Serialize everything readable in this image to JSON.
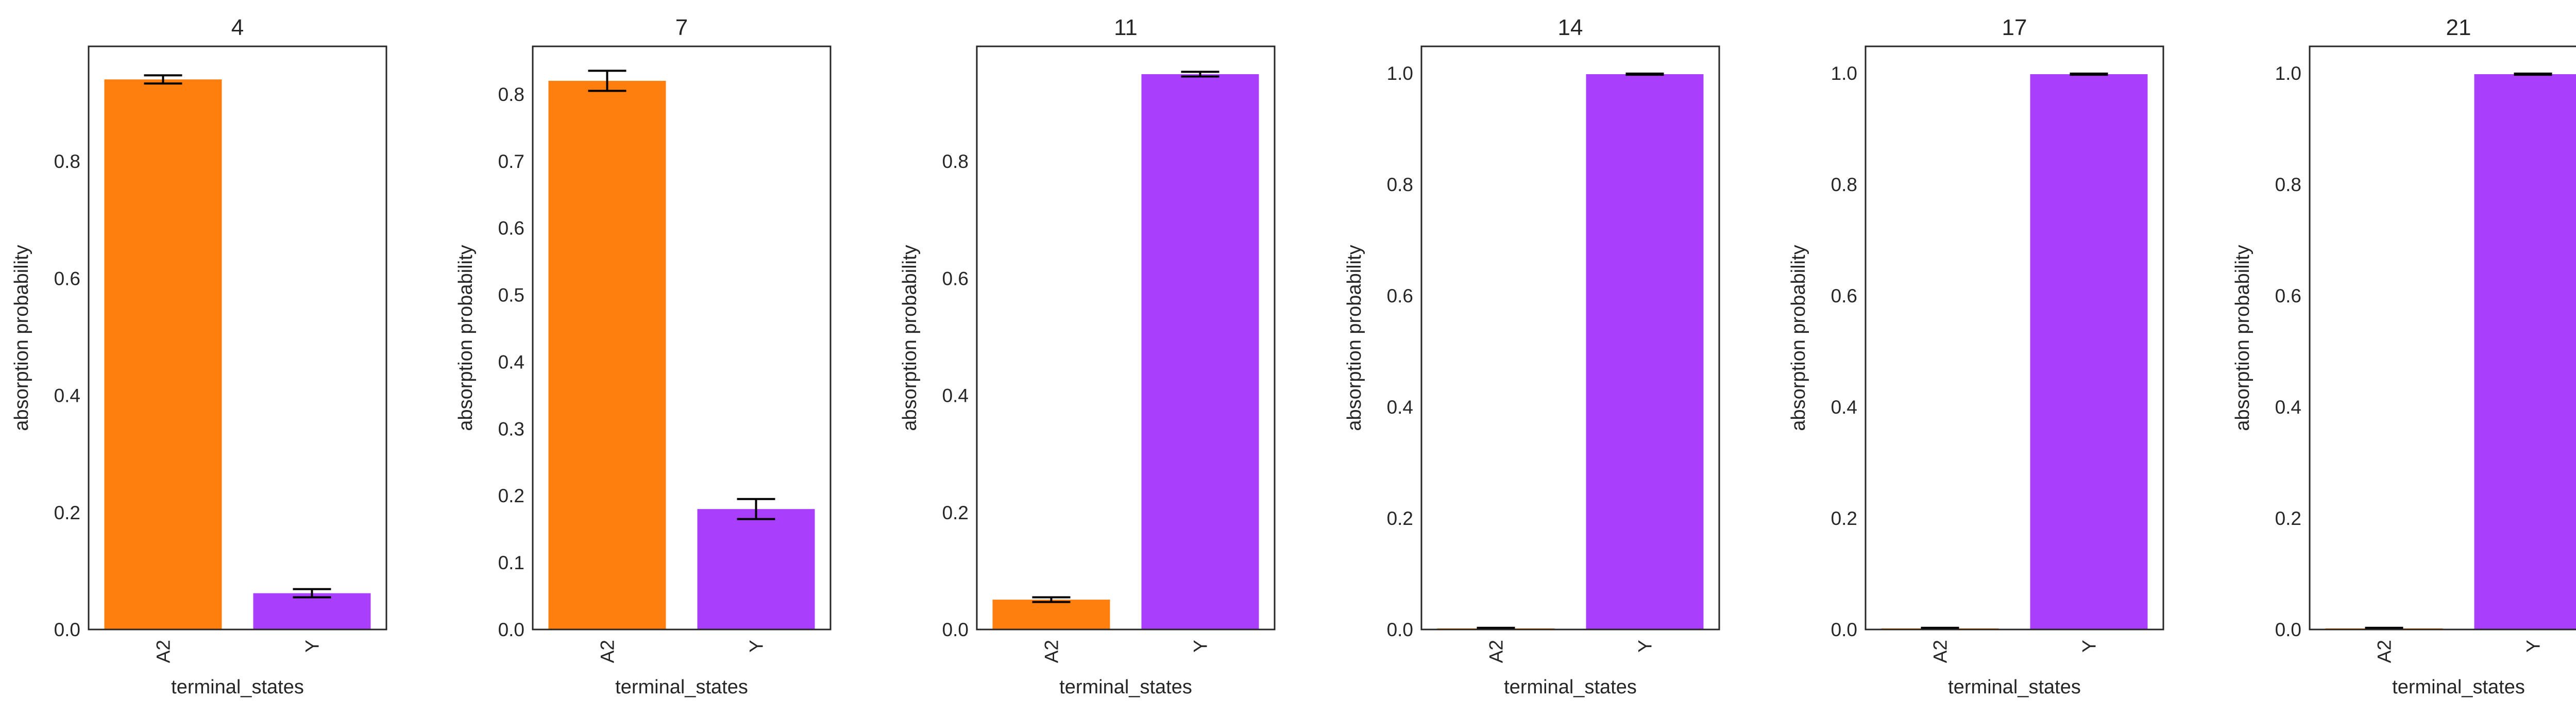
{
  "colors": {
    "A2": "#ff7f0e",
    "Y": "#a93efb",
    "axis": "#262626",
    "errorbar": "#000000"
  },
  "chart_data": [
    {
      "type": "bar",
      "title": "4",
      "xlabel": "terminal_states",
      "ylabel": "absorption probability",
      "categories": [
        "A2",
        "Y"
      ],
      "values": [
        0.94,
        0.062
      ],
      "errors": [
        0.007,
        0.007
      ],
      "ylim": [
        0,
        0.9965
      ],
      "yticks": [
        0.0,
        0.2,
        0.4,
        0.6,
        0.8
      ],
      "ytick_labels": [
        "0.0",
        "0.2",
        "0.4",
        "0.6",
        "0.8"
      ],
      "grid": false
    },
    {
      "type": "bar",
      "title": "7",
      "xlabel": "terminal_states",
      "ylabel": "absorption probability",
      "categories": [
        "A2",
        "Y"
      ],
      "values": [
        0.82,
        0.18
      ],
      "errors": [
        0.015,
        0.015
      ],
      "ylim": [
        0,
        0.8715
      ],
      "yticks": [
        0.0,
        0.1,
        0.2,
        0.3,
        0.4,
        0.5,
        0.6,
        0.7,
        0.8
      ],
      "ytick_labels": [
        "0.0",
        "0.1",
        "0.2",
        "0.3",
        "0.4",
        "0.5",
        "0.6",
        "0.7",
        "0.8"
      ],
      "grid": false
    },
    {
      "type": "bar",
      "title": "11",
      "xlabel": "terminal_states",
      "ylabel": "absorption probability",
      "categories": [
        "A2",
        "Y"
      ],
      "values": [
        0.051,
        0.949
      ],
      "errors": [
        0.004,
        0.004
      ],
      "ylim": [
        0,
        0.9965
      ],
      "yticks": [
        0.0,
        0.2,
        0.4,
        0.6,
        0.8
      ],
      "ytick_labels": [
        "0.0",
        "0.2",
        "0.4",
        "0.6",
        "0.8"
      ],
      "grid": false
    },
    {
      "type": "bar",
      "title": "14",
      "xlabel": "terminal_states",
      "ylabel": "absorption probability",
      "categories": [
        "A2",
        "Y"
      ],
      "values": [
        0.002,
        0.998
      ],
      "errors": [
        0.001,
        0.001
      ],
      "ylim": [
        0,
        1.048
      ],
      "yticks": [
        0.0,
        0.2,
        0.4,
        0.6,
        0.8,
        1.0
      ],
      "ytick_labels": [
        "0.0",
        "0.2",
        "0.4",
        "0.6",
        "0.8",
        "1.0"
      ],
      "grid": false
    },
    {
      "type": "bar",
      "title": "17",
      "xlabel": "terminal_states",
      "ylabel": "absorption probability",
      "categories": [
        "A2",
        "Y"
      ],
      "values": [
        0.002,
        0.998
      ],
      "errors": [
        0.001,
        0.001
      ],
      "ylim": [
        0,
        1.048
      ],
      "yticks": [
        0.0,
        0.2,
        0.4,
        0.6,
        0.8,
        1.0
      ],
      "ytick_labels": [
        "0.0",
        "0.2",
        "0.4",
        "0.6",
        "0.8",
        "1.0"
      ],
      "grid": false
    },
    {
      "type": "bar",
      "title": "21",
      "xlabel": "terminal_states",
      "ylabel": "absorption probability",
      "categories": [
        "A2",
        "Y"
      ],
      "values": [
        0.002,
        0.998
      ],
      "errors": [
        0.001,
        0.001
      ],
      "ylim": [
        0,
        1.048
      ],
      "yticks": [
        0.0,
        0.2,
        0.4,
        0.6,
        0.8,
        1.0
      ],
      "ytick_labels": [
        "0.0",
        "0.2",
        "0.4",
        "0.6",
        "0.8",
        "1.0"
      ],
      "grid": false
    }
  ]
}
